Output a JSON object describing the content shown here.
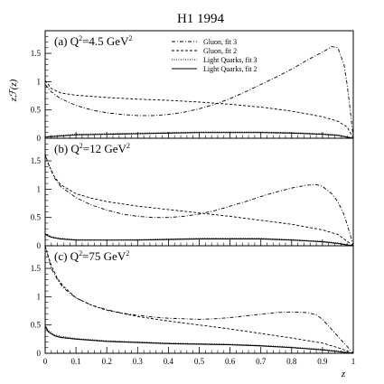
{
  "chart_data": {
    "type": "line",
    "title": "H1 1994",
    "xlabel": "z",
    "ylabel": "zℱ(z)",
    "xlim": [
      0,
      1
    ],
    "x_ticks": [
      "0",
      "0.1",
      "0.2",
      "0.3",
      "0.4",
      "0.5",
      "0.6",
      "0.7",
      "0.8",
      "0.9",
      "1"
    ],
    "legend": {
      "position": "top-right",
      "entries": [
        {
          "label": "Gluon, fit 3",
          "dash": "4,2,1,2"
        },
        {
          "label": "Gluon, fit 2",
          "dash": "3,2"
        },
        {
          "label": "Light Quarks, fit 3",
          "dash": "1,1.5"
        },
        {
          "label": "Light Quarks, fit 2",
          "dash": ""
        }
      ]
    },
    "panels": [
      {
        "label": "(a)  Q",
        "label_sup": "2",
        "label_rest": "=4.5 GeV",
        "label_sup2": "2",
        "ylim": [
          0,
          1.9
        ],
        "y_ticks": [
          "0",
          "0.5",
          "1",
          "1.5"
        ],
        "series": [
          {
            "name": "Gluon, fit 3",
            "points": [
              [
                0,
                0.95
              ],
              [
                0.02,
                0.82
              ],
              [
                0.05,
                0.7
              ],
              [
                0.1,
                0.58
              ],
              [
                0.15,
                0.5
              ],
              [
                0.2,
                0.45
              ],
              [
                0.25,
                0.42
              ],
              [
                0.3,
                0.4
              ],
              [
                0.35,
                0.4
              ],
              [
                0.4,
                0.42
              ],
              [
                0.45,
                0.46
              ],
              [
                0.5,
                0.52
              ],
              [
                0.55,
                0.6
              ],
              [
                0.6,
                0.7
              ],
              [
                0.65,
                0.82
              ],
              [
                0.7,
                0.95
              ],
              [
                0.75,
                1.08
              ],
              [
                0.8,
                1.22
              ],
              [
                0.85,
                1.38
              ],
              [
                0.9,
                1.52
              ],
              [
                0.93,
                1.62
              ],
              [
                0.95,
                1.6
              ],
              [
                0.97,
                1.3
              ],
              [
                0.98,
                0.95
              ],
              [
                0.99,
                0.5
              ],
              [
                1,
                0
              ]
            ]
          },
          {
            "name": "Gluon, fit 2",
            "points": [
              [
                0,
                1.02
              ],
              [
                0.02,
                0.88
              ],
              [
                0.05,
                0.8
              ],
              [
                0.1,
                0.76
              ],
              [
                0.2,
                0.72
              ],
              [
                0.3,
                0.69
              ],
              [
                0.4,
                0.67
              ],
              [
                0.5,
                0.64
              ],
              [
                0.6,
                0.6
              ],
              [
                0.7,
                0.55
              ],
              [
                0.8,
                0.48
              ],
              [
                0.9,
                0.38
              ],
              [
                0.95,
                0.3
              ],
              [
                0.98,
                0.2
              ],
              [
                1,
                0
              ]
            ]
          },
          {
            "name": "Light Quarks, fit 3",
            "points": [
              [
                0,
                0.03
              ],
              [
                0.05,
                0.05
              ],
              [
                0.1,
                0.07
              ],
              [
                0.2,
                0.08
              ],
              [
                0.3,
                0.09
              ],
              [
                0.4,
                0.1
              ],
              [
                0.5,
                0.11
              ],
              [
                0.6,
                0.11
              ],
              [
                0.7,
                0.11
              ],
              [
                0.8,
                0.1
              ],
              [
                0.9,
                0.08
              ],
              [
                0.95,
                0.06
              ],
              [
                1,
                0
              ]
            ]
          },
          {
            "name": "Light Quarks, fit 2",
            "points": [
              [
                0,
                0.02
              ],
              [
                0.05,
                0.04
              ],
              [
                0.1,
                0.06
              ],
              [
                0.2,
                0.07
              ],
              [
                0.3,
                0.08
              ],
              [
                0.4,
                0.09
              ],
              [
                0.5,
                0.1
              ],
              [
                0.6,
                0.1
              ],
              [
                0.7,
                0.1
              ],
              [
                0.8,
                0.09
              ],
              [
                0.9,
                0.07
              ],
              [
                0.95,
                0.05
              ],
              [
                1,
                0
              ]
            ]
          }
        ]
      },
      {
        "label": "(b)  Q",
        "label_sup": "2",
        "label_rest": "=12 GeV",
        "label_sup2": "2",
        "ylim": [
          0,
          1.9
        ],
        "y_ticks": [
          "0",
          "0.5",
          "1",
          "1.5"
        ],
        "series": [
          {
            "name": "Gluon, fit 3",
            "points": [
              [
                0,
                1.6
              ],
              [
                0.01,
                1.45
              ],
              [
                0.03,
                1.2
              ],
              [
                0.05,
                1.05
              ],
              [
                0.1,
                0.85
              ],
              [
                0.15,
                0.72
              ],
              [
                0.2,
                0.63
              ],
              [
                0.25,
                0.56
              ],
              [
                0.3,
                0.52
              ],
              [
                0.35,
                0.5
              ],
              [
                0.4,
                0.5
              ],
              [
                0.45,
                0.52
              ],
              [
                0.5,
                0.56
              ],
              [
                0.55,
                0.62
              ],
              [
                0.6,
                0.7
              ],
              [
                0.65,
                0.78
              ],
              [
                0.7,
                0.87
              ],
              [
                0.75,
                0.95
              ],
              [
                0.8,
                1.02
              ],
              [
                0.85,
                1.07
              ],
              [
                0.88,
                1.08
              ],
              [
                0.9,
                1.05
              ],
              [
                0.93,
                0.92
              ],
              [
                0.95,
                0.78
              ],
              [
                0.97,
                0.55
              ],
              [
                0.99,
                0.2
              ],
              [
                1,
                0
              ]
            ]
          },
          {
            "name": "Gluon, fit 2",
            "points": [
              [
                0,
                1.62
              ],
              [
                0.01,
                1.45
              ],
              [
                0.03,
                1.22
              ],
              [
                0.05,
                1.08
              ],
              [
                0.1,
                0.92
              ],
              [
                0.15,
                0.84
              ],
              [
                0.2,
                0.78
              ],
              [
                0.3,
                0.7
              ],
              [
                0.4,
                0.64
              ],
              [
                0.5,
                0.58
              ],
              [
                0.6,
                0.52
              ],
              [
                0.7,
                0.45
              ],
              [
                0.8,
                0.38
              ],
              [
                0.9,
                0.28
              ],
              [
                0.95,
                0.2
              ],
              [
                1,
                0
              ]
            ]
          },
          {
            "name": "Light Quarks, fit 3",
            "points": [
              [
                0,
                0.22
              ],
              [
                0.02,
                0.16
              ],
              [
                0.05,
                0.13
              ],
              [
                0.1,
                0.11
              ],
              [
                0.2,
                0.1
              ],
              [
                0.3,
                0.11
              ],
              [
                0.4,
                0.12
              ],
              [
                0.5,
                0.13
              ],
              [
                0.6,
                0.13
              ],
              [
                0.7,
                0.13
              ],
              [
                0.8,
                0.11
              ],
              [
                0.9,
                0.08
              ],
              [
                0.95,
                0.05
              ],
              [
                1,
                0
              ]
            ]
          },
          {
            "name": "Light Quarks, fit 2",
            "points": [
              [
                0,
                0.2
              ],
              [
                0.02,
                0.15
              ],
              [
                0.05,
                0.12
              ],
              [
                0.1,
                0.1
              ],
              [
                0.2,
                0.1
              ],
              [
                0.3,
                0.1
              ],
              [
                0.4,
                0.11
              ],
              [
                0.5,
                0.12
              ],
              [
                0.6,
                0.12
              ],
              [
                0.7,
                0.12
              ],
              [
                0.8,
                0.1
              ],
              [
                0.9,
                0.07
              ],
              [
                0.95,
                0.04
              ],
              [
                1,
                0
              ]
            ]
          }
        ]
      },
      {
        "label": "(c)  Q",
        "label_sup": "2",
        "label_rest": "=75 GeV",
        "label_sup2": "2",
        "ylim": [
          0,
          1.9
        ],
        "y_ticks": [
          "0",
          "0.5",
          "1",
          "1.5"
        ],
        "series": [
          {
            "name": "Gluon, fit 3",
            "points": [
              [
                0,
                1.9
              ],
              [
                0.005,
                1.8
              ],
              [
                0.02,
                1.5
              ],
              [
                0.04,
                1.3
              ],
              [
                0.06,
                1.15
              ],
              [
                0.1,
                0.98
              ],
              [
                0.15,
                0.85
              ],
              [
                0.2,
                0.77
              ],
              [
                0.25,
                0.71
              ],
              [
                0.3,
                0.67
              ],
              [
                0.35,
                0.64
              ],
              [
                0.4,
                0.62
              ],
              [
                0.45,
                0.61
              ],
              [
                0.5,
                0.6
              ],
              [
                0.55,
                0.61
              ],
              [
                0.6,
                0.63
              ],
              [
                0.65,
                0.66
              ],
              [
                0.7,
                0.69
              ],
              [
                0.75,
                0.72
              ],
              [
                0.8,
                0.73
              ],
              [
                0.85,
                0.72
              ],
              [
                0.88,
                0.68
              ],
              [
                0.9,
                0.6
              ],
              [
                0.93,
                0.42
              ],
              [
                0.95,
                0.3
              ],
              [
                0.97,
                0.18
              ],
              [
                1,
                0
              ]
            ]
          },
          {
            "name": "Gluon, fit 2",
            "points": [
              [
                0,
                1.9
              ],
              [
                0.005,
                1.8
              ],
              [
                0.02,
                1.55
              ],
              [
                0.04,
                1.32
              ],
              [
                0.06,
                1.18
              ],
              [
                0.1,
                0.98
              ],
              [
                0.15,
                0.85
              ],
              [
                0.2,
                0.76
              ],
              [
                0.3,
                0.65
              ],
              [
                0.4,
                0.57
              ],
              [
                0.5,
                0.5
              ],
              [
                0.6,
                0.43
              ],
              [
                0.7,
                0.35
              ],
              [
                0.8,
                0.27
              ],
              [
                0.9,
                0.18
              ],
              [
                0.95,
                0.1
              ],
              [
                1,
                0
              ]
            ]
          },
          {
            "name": "Light Quarks, fit 3",
            "points": [
              [
                0,
                0.5
              ],
              [
                0.01,
                0.4
              ],
              [
                0.03,
                0.33
              ],
              [
                0.05,
                0.3
              ],
              [
                0.1,
                0.26
              ],
              [
                0.2,
                0.22
              ],
              [
                0.3,
                0.2
              ],
              [
                0.4,
                0.18
              ],
              [
                0.5,
                0.17
              ],
              [
                0.6,
                0.16
              ],
              [
                0.7,
                0.14
              ],
              [
                0.8,
                0.11
              ],
              [
                0.9,
                0.07
              ],
              [
                0.95,
                0.04
              ],
              [
                1,
                0
              ]
            ]
          },
          {
            "name": "Light Quarks, fit 2",
            "points": [
              [
                0,
                0.48
              ],
              [
                0.01,
                0.38
              ],
              [
                0.03,
                0.31
              ],
              [
                0.05,
                0.28
              ],
              [
                0.1,
                0.25
              ],
              [
                0.2,
                0.21
              ],
              [
                0.3,
                0.19
              ],
              [
                0.4,
                0.17
              ],
              [
                0.5,
                0.16
              ],
              [
                0.6,
                0.15
              ],
              [
                0.7,
                0.13
              ],
              [
                0.8,
                0.1
              ],
              [
                0.9,
                0.06
              ],
              [
                0.95,
                0.03
              ],
              [
                1,
                0
              ]
            ]
          }
        ]
      }
    ]
  }
}
